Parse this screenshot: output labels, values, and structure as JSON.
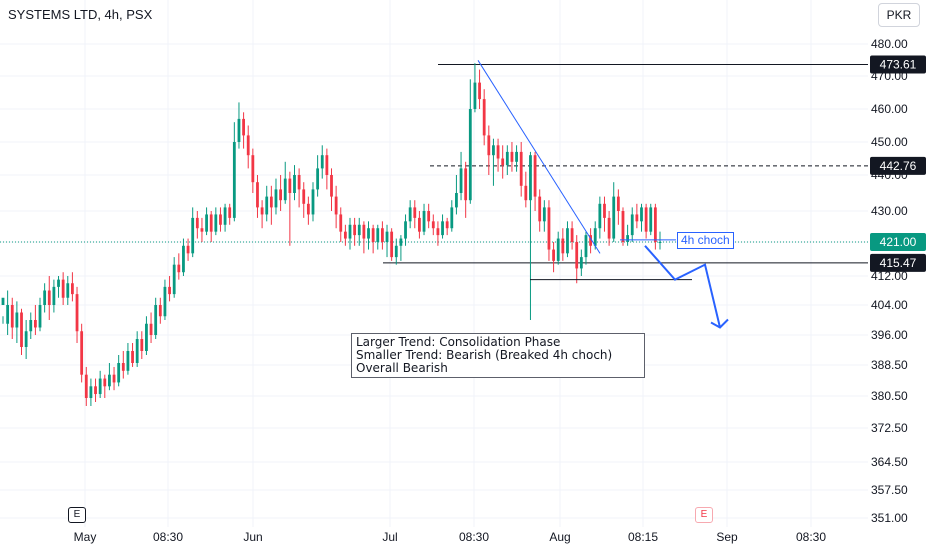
{
  "header": {
    "title": "SYSTEMS LTD, 4h, PSX",
    "currency": "PKR"
  },
  "events": [
    "E",
    "E"
  ],
  "annotations": {
    "note_lines": [
      "Larger Trend: Consolidation Phase",
      "Smaller Trend: Bearish (Breaked 4h choch)",
      "Overall Bearish"
    ],
    "choch_label": "4h choch"
  },
  "colors": {
    "up": "#089981",
    "down": "#f23645",
    "drawing": "#2962ff",
    "level": "#131722",
    "current": "#089981"
  },
  "chart_data": {
    "type": "candlestick",
    "y_ticks": [
      "480.00",
      "470.00",
      "460.00",
      "450.00",
      "440.00",
      "430.00",
      "421.00",
      "412.00",
      "404.00",
      "396.00",
      "388.50",
      "380.50",
      "372.50",
      "364.50",
      "357.50",
      "351.00"
    ],
    "x_ticks": [
      "May",
      "08:30",
      "Jun",
      "Jul",
      "08:30",
      "Aug",
      "08:15",
      "Sep",
      "08:30"
    ],
    "levels": [
      {
        "value": 473.61,
        "label": "473.61",
        "style": "solid"
      },
      {
        "value": 442.76,
        "label": "442.76",
        "style": "dashed"
      },
      {
        "value": 415.47,
        "label": "415.47",
        "style": "solid"
      }
    ],
    "current_price": {
      "value": 421.0,
      "label": "421.00"
    },
    "candles": [
      [
        404,
        406,
        401,
        399
      ],
      [
        399,
        404,
        408,
        396
      ],
      [
        404,
        398,
        406,
        395
      ],
      [
        398,
        402,
        405,
        394
      ],
      [
        402,
        393,
        403,
        391
      ],
      [
        393,
        397,
        400,
        390
      ],
      [
        397,
        400,
        402,
        395
      ],
      [
        400,
        398,
        404,
        396
      ],
      [
        398,
        404,
        406,
        397
      ],
      [
        404,
        408,
        410,
        402
      ],
      [
        408,
        404,
        412,
        400
      ],
      [
        404,
        409,
        411,
        402
      ],
      [
        409,
        411,
        412,
        406
      ],
      [
        411,
        406,
        413,
        404
      ],
      [
        406,
        410,
        412,
        404
      ],
      [
        410,
        407,
        413,
        405
      ],
      [
        407,
        397,
        409,
        394
      ],
      [
        397,
        386,
        399,
        384
      ],
      [
        386,
        380,
        388,
        378
      ],
      [
        380,
        383,
        385,
        378
      ],
      [
        383,
        381,
        385,
        379
      ],
      [
        381,
        385,
        387,
        380
      ],
      [
        385,
        383,
        386,
        380
      ],
      [
        383,
        386,
        389,
        382
      ],
      [
        386,
        384,
        388,
        382
      ],
      [
        384,
        389,
        391,
        383
      ],
      [
        389,
        387,
        392,
        385
      ],
      [
        387,
        392,
        394,
        386
      ],
      [
        392,
        389,
        394,
        388
      ],
      [
        389,
        395,
        397,
        388
      ],
      [
        395,
        392,
        397,
        390
      ],
      [
        392,
        399,
        401,
        391
      ],
      [
        399,
        396,
        402,
        394
      ],
      [
        396,
        404,
        406,
        395
      ],
      [
        404,
        401,
        406,
        399
      ],
      [
        401,
        409,
        411,
        400
      ],
      [
        409,
        407,
        412,
        405
      ],
      [
        407,
        415,
        417,
        406
      ],
      [
        415,
        413,
        418,
        411
      ],
      [
        413,
        420,
        422,
        412
      ],
      [
        420,
        418,
        422,
        416
      ],
      [
        418,
        428,
        431,
        417
      ],
      [
        428,
        425,
        430,
        422
      ],
      [
        425,
        424,
        428,
        421
      ],
      [
        424,
        429,
        431,
        423
      ],
      [
        429,
        424,
        430,
        421
      ],
      [
        424,
        429,
        431,
        423
      ],
      [
        429,
        426,
        431,
        424
      ],
      [
        426,
        431,
        432,
        424
      ],
      [
        431,
        428,
        432,
        426
      ],
      [
        428,
        450,
        456,
        427
      ],
      [
        450,
        457,
        462,
        448
      ],
      [
        457,
        452,
        459,
        448
      ],
      [
        452,
        446,
        455,
        442
      ],
      [
        446,
        438,
        448,
        435
      ],
      [
        438,
        431,
        440,
        428
      ],
      [
        431,
        429,
        433,
        425
      ],
      [
        429,
        434,
        437,
        427
      ],
      [
        434,
        431,
        437,
        426
      ],
      [
        431,
        436,
        439,
        429
      ],
      [
        436,
        433,
        440,
        430
      ],
      [
        433,
        439,
        444,
        432
      ],
      [
        439,
        435,
        441,
        420
      ],
      [
        435,
        440,
        443,
        433
      ],
      [
        440,
        436,
        442,
        431
      ],
      [
        436,
        432,
        438,
        428
      ],
      [
        432,
        429,
        434,
        426
      ],
      [
        429,
        436,
        438,
        427
      ],
      [
        436,
        442,
        446,
        434
      ],
      [
        442,
        446,
        449,
        439
      ],
      [
        446,
        440,
        448,
        436
      ],
      [
        440,
        434,
        442,
        430
      ],
      [
        434,
        429,
        437,
        425
      ],
      [
        429,
        424,
        431,
        421
      ],
      [
        424,
        422,
        426,
        420
      ],
      [
        422,
        426,
        428,
        419
      ],
      [
        426,
        423,
        428,
        420
      ],
      [
        423,
        426,
        428,
        420
      ],
      [
        426,
        422,
        427,
        418
      ],
      [
        422,
        425,
        427,
        419
      ],
      [
        425,
        421,
        426,
        418
      ],
      [
        421,
        425,
        426,
        419
      ],
      [
        425,
        421,
        427,
        419
      ],
      [
        421,
        424,
        426,
        417
      ],
      [
        424,
        417,
        425,
        416
      ],
      [
        417,
        420,
        422,
        415
      ],
      [
        420,
        422,
        423,
        416
      ],
      [
        422,
        427,
        429,
        420
      ],
      [
        427,
        431,
        433,
        425
      ],
      [
        431,
        428,
        433,
        425
      ],
      [
        428,
        424,
        430,
        422
      ],
      [
        424,
        430,
        432,
        423
      ],
      [
        430,
        427,
        432,
        425
      ],
      [
        427,
        425,
        429,
        423
      ],
      [
        425,
        423,
        427,
        420
      ],
      [
        423,
        427,
        429,
        422
      ],
      [
        427,
        425,
        428,
        423
      ],
      [
        425,
        431,
        433,
        424
      ],
      [
        431,
        435,
        440,
        429
      ],
      [
        435,
        442,
        447,
        433
      ],
      [
        442,
        433,
        444,
        428
      ],
      [
        433,
        460,
        469,
        432
      ],
      [
        460,
        468,
        474,
        459
      ],
      [
        468,
        463,
        472,
        460
      ],
      [
        463,
        452,
        466,
        449
      ],
      [
        452,
        446,
        455,
        440
      ],
      [
        446,
        449,
        451,
        437
      ],
      [
        449,
        445,
        451,
        441
      ],
      [
        445,
        443,
        449,
        439
      ],
      [
        443,
        447,
        449,
        440
      ],
      [
        447,
        444,
        450,
        441
      ],
      [
        444,
        447,
        449,
        441
      ],
      [
        447,
        437,
        450,
        434
      ],
      [
        437,
        433,
        441,
        431
      ],
      [
        433,
        446,
        447,
        400
      ],
      [
        446,
        434,
        447,
        430
      ],
      [
        434,
        427,
        436,
        424
      ],
      [
        427,
        431,
        433,
        424
      ],
      [
        431,
        419,
        433,
        416
      ],
      [
        419,
        416,
        421,
        413
      ],
      [
        416,
        422,
        424,
        415
      ],
      [
        422,
        418,
        425,
        416
      ],
      [
        418,
        425,
        427,
        417
      ],
      [
        425,
        421,
        427,
        419
      ],
      [
        421,
        414,
        423,
        410
      ],
      [
        414,
        417,
        419,
        412
      ],
      [
        417,
        423,
        424,
        415
      ],
      [
        423,
        420,
        425,
        418
      ],
      [
        420,
        425,
        427,
        419
      ],
      [
        425,
        432,
        434,
        422
      ],
      [
        432,
        428,
        434,
        424
      ],
      [
        428,
        422,
        430,
        420
      ],
      [
        422,
        434,
        438,
        421
      ],
      [
        434,
        430,
        436,
        426
      ],
      [
        430,
        421,
        431,
        420
      ],
      [
        421,
        423,
        426,
        420
      ],
      [
        423,
        429,
        431,
        421
      ],
      [
        429,
        427,
        432,
        425
      ],
      [
        427,
        431,
        432,
        424
      ],
      [
        431,
        424,
        432,
        422
      ],
      [
        424,
        431,
        432,
        423
      ],
      [
        431,
        421,
        432,
        419
      ],
      [
        421,
        421,
        424,
        419
      ]
    ],
    "trendline": {
      "from": [
        469,
        474.9
      ],
      "to": [
        600,
        418
      ]
    },
    "projection": [
      [
        645,
        420
      ],
      [
        675,
        411
      ],
      [
        705,
        415
      ],
      [
        720,
        398
      ]
    ]
  }
}
